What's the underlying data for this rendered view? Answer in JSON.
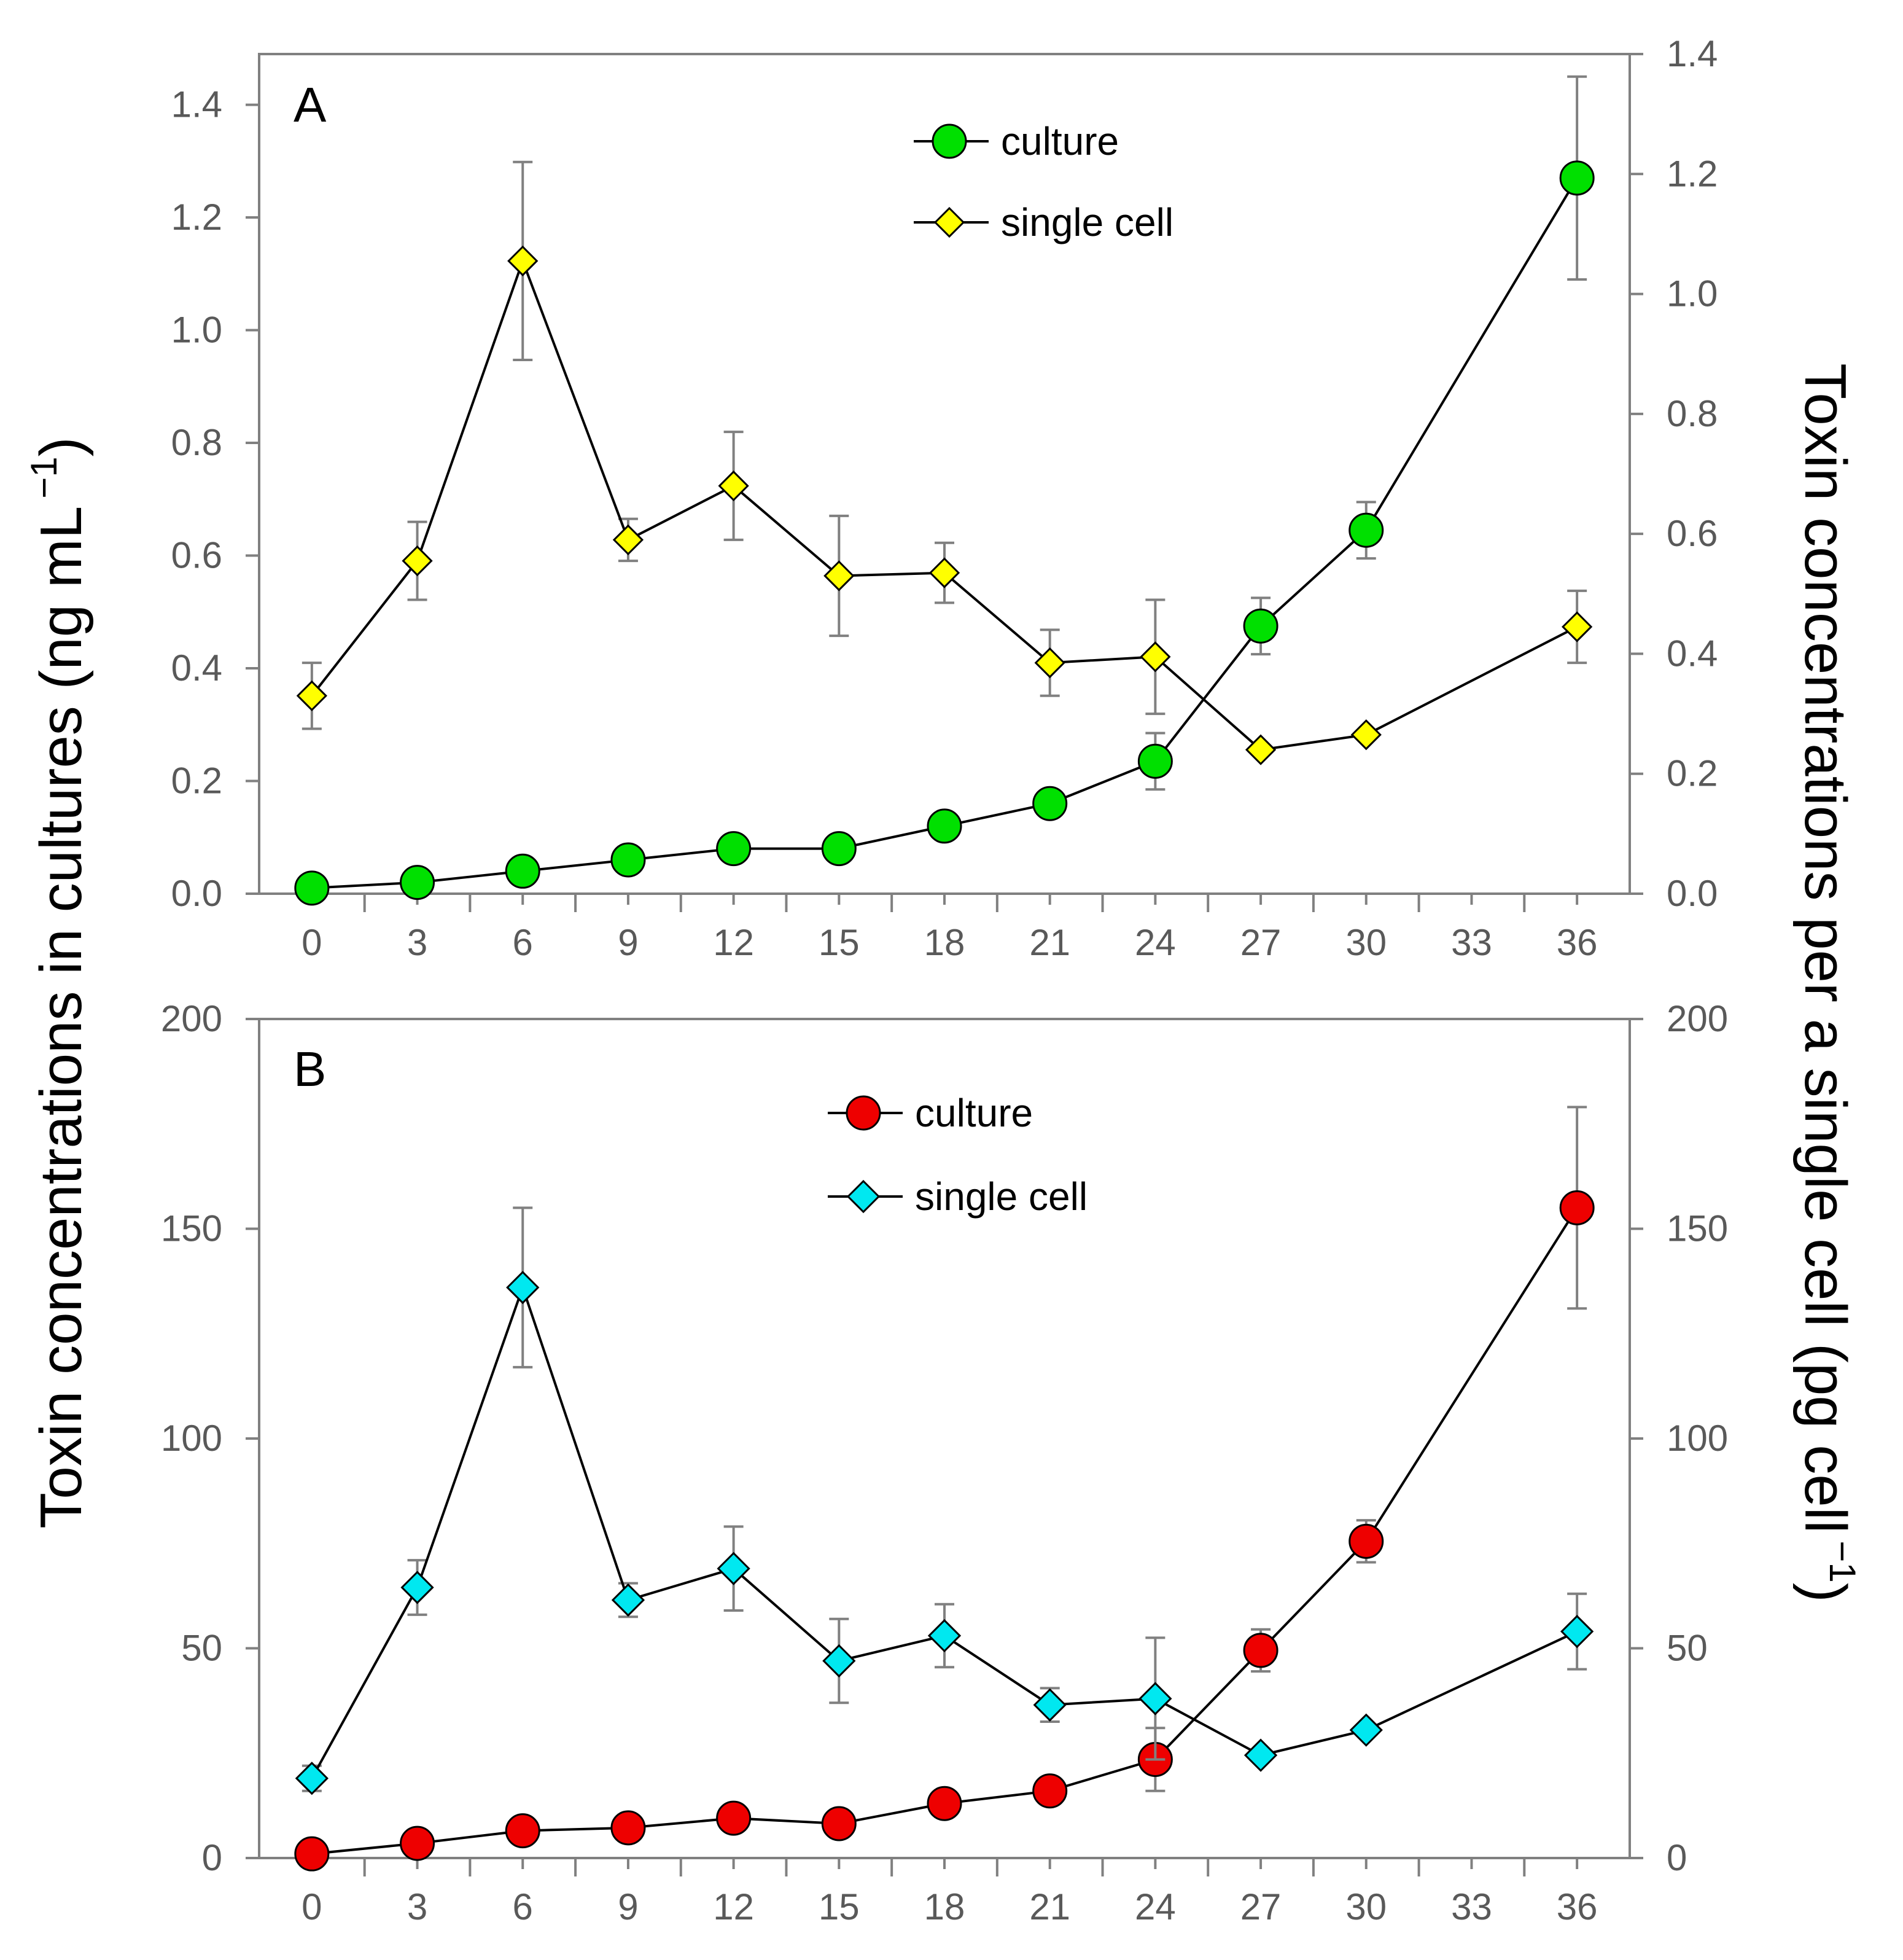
{
  "axis_titles": {
    "left": "Toxin concentrations in cultures (ng mL",
    "left_sup": "−1",
    "left_close": ")",
    "right": "Toxin concentrations per a single cell (pg cell",
    "right_sup": "−1",
    "right_close": ")"
  },
  "chart_data": [
    {
      "type": "line",
      "panel": "A",
      "x_ticks": [
        0,
        3,
        6,
        9,
        12,
        15,
        18,
        21,
        24,
        27,
        30,
        33,
        36
      ],
      "xlim": [
        -1.5,
        37.5
      ],
      "ylim_left": [
        0,
        1.49
      ],
      "ylim_right": [
        0,
        1.4
      ],
      "y_ticks_left": [
        "0.0",
        "0.2",
        "0.4",
        "0.6",
        "0.8",
        "1.0",
        "1.2",
        "1.4"
      ],
      "y_ticks_right": [
        "0.0",
        "0.2",
        "0.4",
        "0.6",
        "0.8",
        "1.0",
        "1.2",
        "1.4"
      ],
      "legend": {
        "culture": "culture",
        "single": "single cell"
      },
      "series": [
        {
          "name": "culture",
          "axis": "left",
          "marker": "circle",
          "color": "#00e000",
          "x": [
            0,
            3,
            6,
            9,
            12,
            15,
            18,
            21,
            24,
            27,
            30,
            36
          ],
          "y": [
            0.01,
            0.02,
            0.04,
            0.06,
            0.08,
            0.08,
            0.12,
            0.16,
            0.235,
            0.475,
            0.645,
            1.27
          ],
          "err": [
            0,
            0,
            0,
            0,
            0,
            0,
            0,
            0,
            0.05,
            0.05,
            0.05,
            0.18
          ]
        },
        {
          "name": "single cell",
          "axis": "right",
          "marker": "diamond",
          "color": "#ffff00",
          "x": [
            0,
            3,
            6,
            9,
            12,
            15,
            18,
            21,
            24,
            27,
            30,
            36
          ],
          "y": [
            0.33,
            0.555,
            1.055,
            0.59,
            0.68,
            0.53,
            0.535,
            0.385,
            0.395,
            0.24,
            0.265,
            0.445
          ],
          "err": [
            0.055,
            0.065,
            0.165,
            0.035,
            0.09,
            0.1,
            0.05,
            0.055,
            0.095,
            0,
            0,
            0.06
          ]
        }
      ]
    },
    {
      "type": "line",
      "panel": "B",
      "x_ticks": [
        0,
        3,
        6,
        9,
        12,
        15,
        18,
        21,
        24,
        27,
        30,
        33,
        36
      ],
      "xlim": [
        -1.5,
        37.5
      ],
      "ylim_left": [
        0,
        200
      ],
      "ylim_right": [
        0,
        200
      ],
      "y_ticks_left": [
        "0",
        "50",
        "100",
        "150",
        "200"
      ],
      "y_ticks_right": [
        "0",
        "50",
        "100",
        "150",
        "200"
      ],
      "legend": {
        "culture": "culture",
        "single": "single cell"
      },
      "series": [
        {
          "name": "culture",
          "axis": "left",
          "marker": "circle",
          "color": "#ee0000",
          "x": [
            0,
            3,
            6,
            9,
            12,
            15,
            18,
            21,
            24,
            27,
            30,
            36
          ],
          "y": [
            1,
            3.5,
            6.5,
            7.2,
            9.5,
            8.2,
            13,
            16,
            23.5,
            49.5,
            75.5,
            155
          ],
          "err": [
            0,
            0,
            0,
            0,
            0,
            0,
            0,
            0,
            7.5,
            5,
            5,
            24
          ]
        },
        {
          "name": "single cell",
          "axis": "right",
          "marker": "diamond",
          "color": "#00e8f0",
          "x": [
            0,
            3,
            6,
            9,
            12,
            15,
            18,
            21,
            24,
            27,
            30,
            36
          ],
          "y": [
            19,
            64.5,
            136,
            61.5,
            69,
            47,
            53,
            36.5,
            38,
            24.5,
            30.5,
            54
          ],
          "err": [
            3,
            6.5,
            19,
            4,
            10,
            10,
            7.5,
            4,
            14.5,
            0,
            0,
            9
          ]
        }
      ]
    }
  ]
}
